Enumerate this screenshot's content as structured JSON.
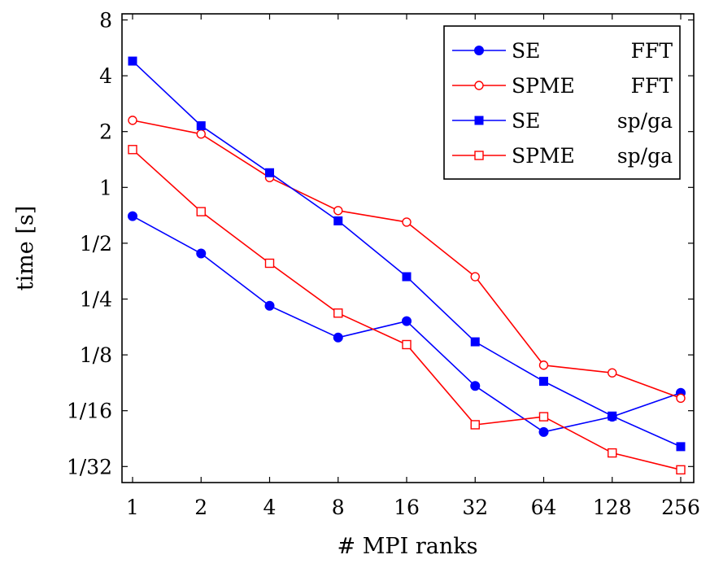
{
  "chart_data": {
    "type": "line",
    "xlabel": "# MPI ranks",
    "ylabel": "time [s]",
    "x_scale": "log2",
    "y_scale": "log2",
    "x": [
      1,
      2,
      4,
      8,
      16,
      32,
      64,
      128,
      256
    ],
    "x_tick_labels": [
      "1",
      "2",
      "4",
      "8",
      "16",
      "32",
      "64",
      "128",
      "256"
    ],
    "y_ticks": [
      0.03125,
      0.0625,
      0.125,
      0.25,
      0.5,
      1,
      2,
      4,
      8
    ],
    "y_tick_labels": [
      "1/32",
      "1/16",
      "1/8",
      "1/4",
      "1/2",
      "1",
      "2",
      "4",
      "8"
    ],
    "ylim": [
      0.025,
      8
    ],
    "grid": false,
    "legend_position": "top-right",
    "series": [
      {
        "name": "SE FFT",
        "legend_method": "SE",
        "legend_kind": "FFT",
        "color": "#0000ff",
        "marker": "filled-circle",
        "values": [
          0.7,
          0.44,
          0.23,
          0.155,
          0.19,
          0.085,
          0.048,
          0.058,
          0.078
        ]
      },
      {
        "name": "SPME FFT",
        "legend_method": "SPME",
        "legend_kind": "FFT",
        "color": "#ff0000",
        "marker": "open-circle",
        "values": [
          2.3,
          1.94,
          1.13,
          0.75,
          0.65,
          0.33,
          0.11,
          0.1,
          0.073
        ]
      },
      {
        "name": "SE sp/ga",
        "legend_method": "SE",
        "legend_kind": "sp/ga",
        "color": "#0000ff",
        "marker": "filled-square",
        "values": [
          4.8,
          2.15,
          1.2,
          0.66,
          0.33,
          0.147,
          0.09,
          0.0585,
          0.04
        ]
      },
      {
        "name": "SPME sp/ga",
        "legend_method": "SPME",
        "legend_kind": "sp/ga",
        "color": "#ff0000",
        "marker": "open-square",
        "values": [
          1.6,
          0.74,
          0.39,
          0.21,
          0.142,
          0.0525,
          0.058,
          0.037,
          0.03
        ]
      }
    ]
  }
}
